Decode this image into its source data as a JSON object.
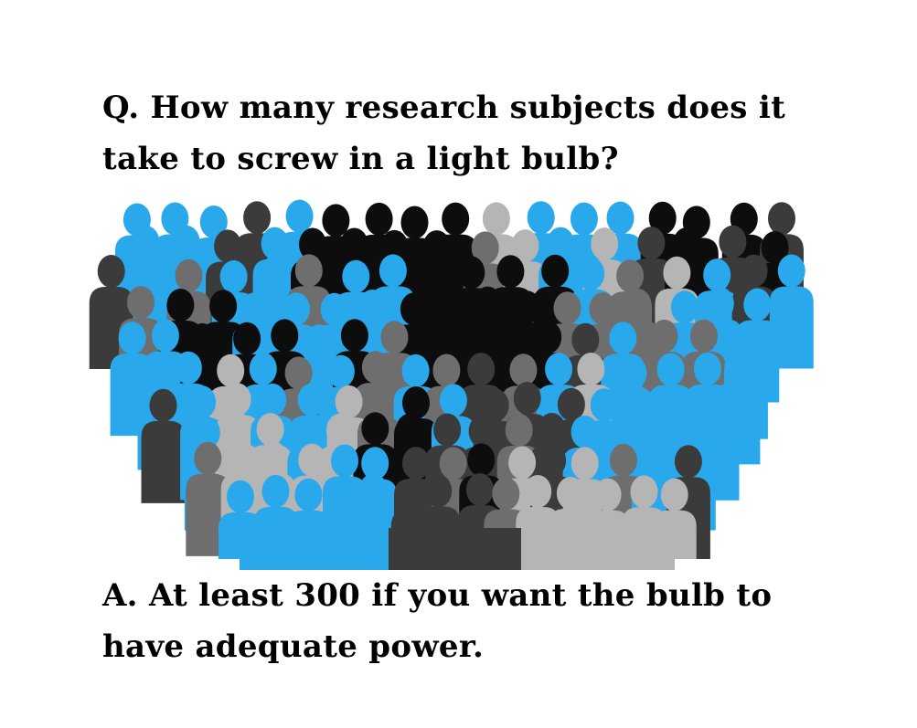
{
  "joke": {
    "question": "Q. How many research subjects does it take to screw in a light bulb?",
    "answer": "A. At least 300 if you want the bulb to have adequate power."
  },
  "illustration": {
    "subject": "crowd-of-people-silhouettes",
    "colors": {
      "blue": "#29a8ec",
      "black": "#0d0d0d",
      "dark_gray": "#3b3b3b",
      "gray": "#6e6e6e",
      "light_gray": "#b5b5b5"
    }
  }
}
